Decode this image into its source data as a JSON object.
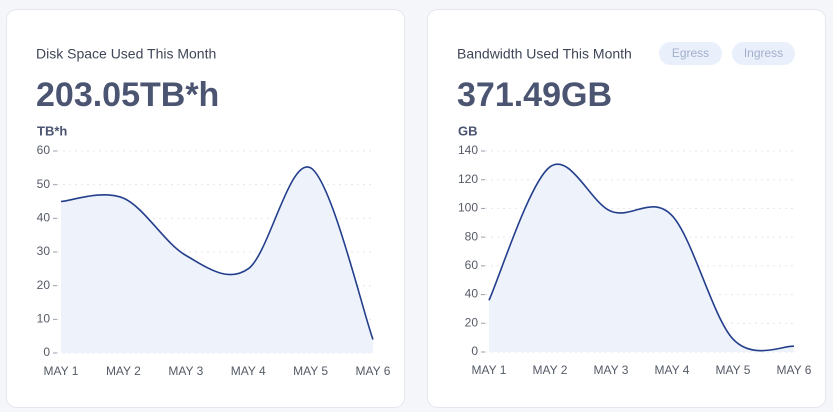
{
  "chart_data": [
    {
      "type": "line",
      "title": "Disk Space Used This Month",
      "total": "203.05TB*h",
      "y_label": "TB*h",
      "categories": [
        "MAY 1",
        "MAY 2",
        "MAY 3",
        "MAY 4",
        "MAY 5",
        "MAY 6"
      ],
      "values": [
        45,
        46,
        29,
        25,
        55,
        4
      ],
      "color": "#233f8c",
      "ylim": [
        0,
        60
      ],
      "yticks": [
        0,
        10,
        20,
        30,
        40,
        50,
        60
      ],
      "grid": true
    },
    {
      "type": "line",
      "title": "Bandwidth Used This Month",
      "total": "371.49GB",
      "y_label": "GB",
      "buttons": [
        "Egress",
        "Ingress"
      ],
      "categories": [
        "MAY 1",
        "MAY 2",
        "MAY 3",
        "MAY 4",
        "MAY 5",
        "MAY 6"
      ],
      "values": [
        36,
        129,
        98,
        95,
        9,
        4
      ],
      "color": "#233f8c",
      "ylim": [
        0,
        140
      ],
      "yticks": [
        0,
        20,
        40,
        60,
        80,
        100,
        120,
        140
      ],
      "grid": true
    }
  ]
}
